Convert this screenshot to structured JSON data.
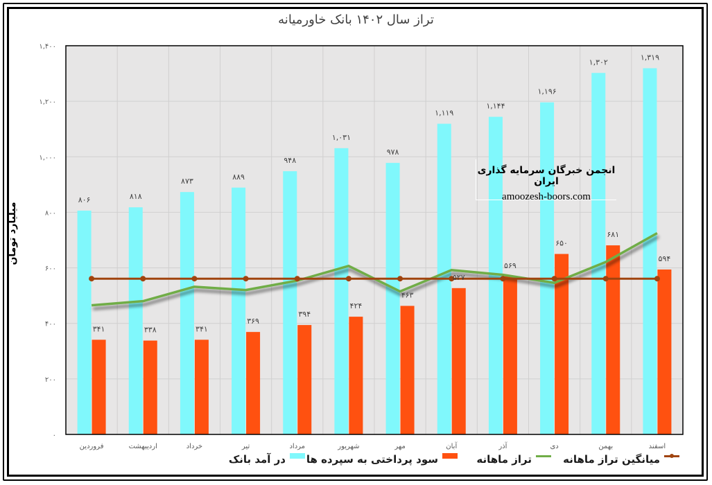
{
  "chart_data": {
    "type": "bar",
    "title": "تراز سال ۱۴۰۲ بانک خاورمیانه",
    "xlabel": "",
    "ylabel": "میلیارد تومان",
    "ylim": [
      0,
      1400
    ],
    "yticks": [
      0,
      200,
      400,
      600,
      800,
      1000,
      1200,
      1400
    ],
    "ytick_labels": [
      "۰",
      "۲۰۰",
      "۴۰۰",
      "۶۰۰",
      "۸۰۰",
      "۱,۰۰۰",
      "۱,۲۰۰",
      "۱,۴۰۰"
    ],
    "grid": true,
    "legend_position": "bottom",
    "categories": [
      "فروردین",
      "اردیبهشت",
      "خرداد",
      "تیر",
      "مرداد",
      "شهریور",
      "مهر",
      "آبان",
      "آذر",
      "دی",
      "بهمن",
      "اسفند"
    ],
    "series": [
      {
        "name": "در آمد بانک",
        "type": "bar",
        "color": "#80F8FC",
        "values": [
          806,
          818,
          873,
          889,
          948,
          1031,
          978,
          1119,
          1144,
          1196,
          1302,
          1319
        ],
        "labels": [
          "۸۰۶",
          "۸۱۸",
          "۸۷۳",
          "۸۸۹",
          "۹۴۸",
          "۱,۰۳۱",
          "۹۷۸",
          "۱,۱۱۹",
          "۱,۱۴۴",
          "۱,۱۹۶",
          "۱,۳۰۲",
          "۱,۳۱۹"
        ]
      },
      {
        "name": "سود پرداختی به سپرده ها",
        "type": "bar",
        "color": "#FF5110",
        "values": [
          341,
          338,
          341,
          369,
          394,
          424,
          463,
          527,
          569,
          650,
          681,
          594
        ],
        "labels": [
          "۳۴۱",
          "۳۳۸",
          "۳۴۱",
          "۳۶۹",
          "۳۹۴",
          "۴۲۴",
          "۴۶۳",
          "۵۲۷",
          "۵۶۹",
          "۶۵۰",
          "۶۸۱",
          "۵۹۴"
        ]
      },
      {
        "name": "تراز ماهانه",
        "type": "line",
        "color": "#70AD47",
        "values": [
          465,
          480,
          532,
          520,
          554,
          607,
          515,
          592,
          575,
          546,
          621,
          725
        ]
      },
      {
        "name": "میانگین تراز ماهانه",
        "type": "line",
        "color": "#A0440F",
        "values": [
          561,
          561,
          561,
          561,
          561,
          561,
          561,
          561,
          561,
          561,
          561,
          561
        ]
      }
    ]
  },
  "watermark": {
    "title": "انجمن خبرگان سرمایه گذاری ایران",
    "url": "amoozesh-boors.com"
  },
  "colors": {
    "plot_background": "#E7E6E6",
    "gridline": "#D0CFCF"
  }
}
